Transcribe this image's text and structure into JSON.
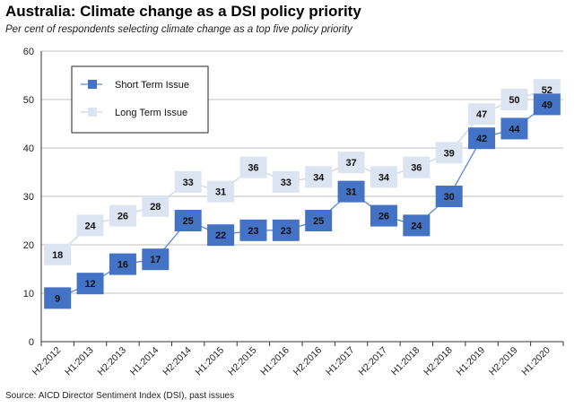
{
  "title": "Australia: Climate change as a DSI policy priority",
  "subtitle": "Per cent of respondents selecting climate change as a top five policy priority",
  "source": "Source: AICD Director Sentiment Index (DSI), past issues",
  "chart_data": {
    "type": "line",
    "categories": [
      "H2:2012",
      "H1:2013",
      "H2:2013",
      "H1:2014",
      "H2:2014",
      "H1:2015",
      "H2:2015",
      "H1:2016",
      "H2:2016",
      "H1:2017",
      "H2:2017",
      "H1:2018",
      "H2:2018",
      "H1:2019",
      "H2:2019",
      "H1:2020"
    ],
    "series": [
      {
        "name": "Short Term Issue",
        "values": [
          9,
          12,
          16,
          17,
          25,
          22,
          23,
          23,
          25,
          31,
          26,
          24,
          30,
          42,
          44,
          49
        ],
        "color": "#4472c4",
        "line_color": "#5b86d6"
      },
      {
        "name": "Long Term Issue",
        "values": [
          18,
          24,
          26,
          28,
          33,
          31,
          36,
          33,
          34,
          37,
          34,
          36,
          39,
          47,
          50,
          52
        ],
        "color": "#dce3f1",
        "line_color": "#c8d4ea"
      }
    ],
    "ylim": [
      0,
      60
    ],
    "yticks": [
      0,
      10,
      20,
      30,
      40,
      50,
      60
    ],
    "grid": true,
    "legend": "top-left",
    "xlabel": "",
    "ylabel": ""
  }
}
